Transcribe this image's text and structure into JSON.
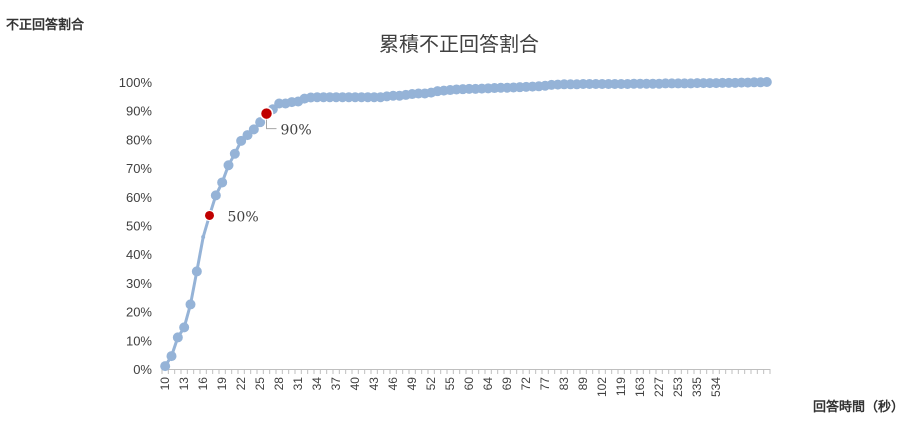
{
  "chart_data": {
    "type": "line",
    "title": "累積不正回答割合",
    "ylabel": "不正回答割合",
    "xlabel": "回答時間（秒）",
    "ylim": [
      0,
      100
    ],
    "y_ticks": [
      "0%",
      "10%",
      "20%",
      "30%",
      "40%",
      "50%",
      "60%",
      "70%",
      "80%",
      "90%",
      "100%"
    ],
    "x_tick_labels": [
      "10",
      "13",
      "16",
      "19",
      "22",
      "25",
      "28",
      "31",
      "34",
      "37",
      "40",
      "43",
      "46",
      "49",
      "52",
      "55",
      "60",
      "64",
      "69",
      "72",
      "77",
      "83",
      "89",
      "102",
      "119",
      "163",
      "227",
      "253",
      "335",
      "534"
    ],
    "series": [
      {
        "color": "#95b3d7",
        "values": [
          1,
          4.5,
          11,
          14.5,
          22.5,
          34,
          46,
          53.5,
          60.5,
          65,
          71,
          75,
          79.5,
          81.5,
          83.5,
          86,
          89,
          90.5,
          92.5,
          92.5,
          93,
          93.2,
          94.2,
          94.6,
          94.7,
          94.7,
          94.7,
          94.7,
          94.7,
          94.7,
          94.7,
          94.7,
          94.7,
          94.7,
          94.7,
          95,
          95.2,
          95.2,
          95.5,
          95.8,
          96,
          96,
          96.3,
          96.8,
          97,
          97.2,
          97.4,
          97.5,
          97.6,
          97.6,
          97.7,
          97.8,
          97.9,
          98,
          98,
          98.1,
          98.2,
          98.3,
          98.4,
          98.5,
          98.7,
          99,
          99.1,
          99.2,
          99.2,
          99.2,
          99.3,
          99.3,
          99.3,
          99.3,
          99.3,
          99.3,
          99.3,
          99.3,
          99.4,
          99.4,
          99.4,
          99.4,
          99.4,
          99.5,
          99.5,
          99.5,
          99.5,
          99.5,
          99.6,
          99.6,
          99.6,
          99.6,
          99.7,
          99.7,
          99.7,
          99.8,
          99.8,
          99.9,
          99.9,
          100
        ]
      }
    ],
    "highlights": [
      {
        "index": 7,
        "value": 53.5,
        "label": "50%",
        "color": "#c00000"
      },
      {
        "index": 16,
        "value": 89,
        "label": "90%",
        "color": "#c00000"
      }
    ]
  }
}
